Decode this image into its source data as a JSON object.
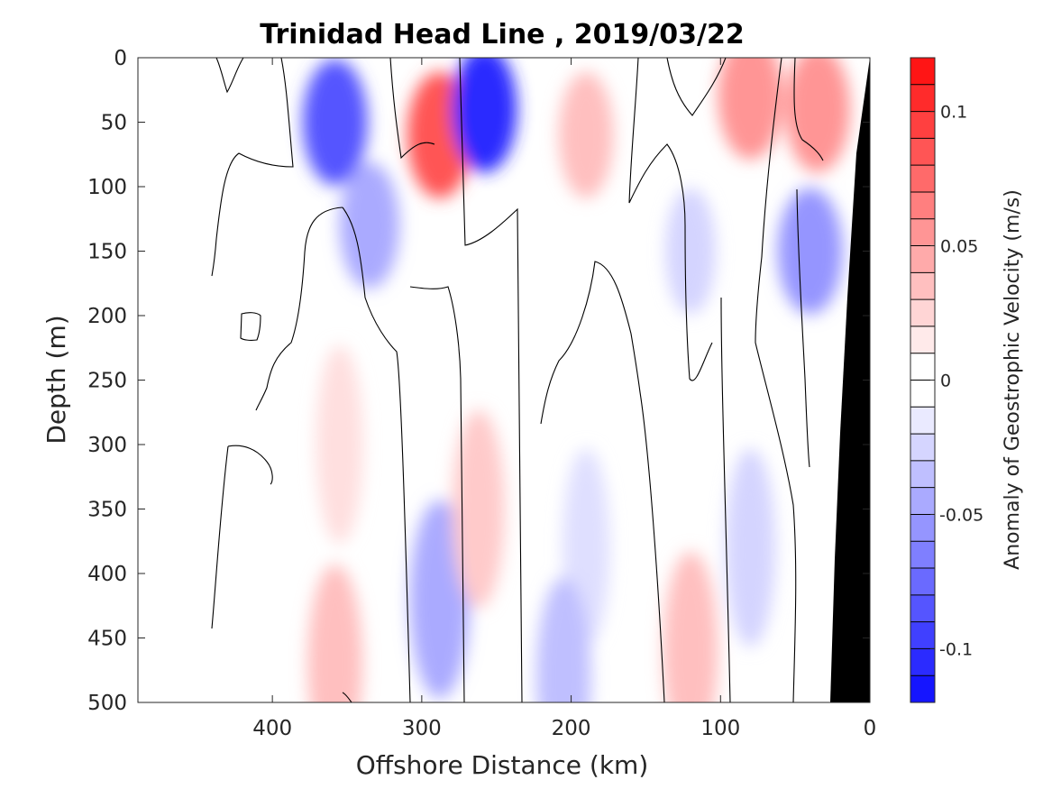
{
  "chart_data": {
    "type": "heatmap",
    "title": "Trinidad Head Line , 2019/03/22",
    "xlabel": "Offshore Distance (km)",
    "ylabel": "Depth (m)",
    "xlim": [
      490,
      0
    ],
    "ylim": [
      0,
      500
    ],
    "x_ticks": [
      "400",
      "300",
      "200",
      "100",
      "0"
    ],
    "x_tick_values": [
      400,
      300,
      200,
      100,
      0
    ],
    "y_ticks": [
      "0",
      "50",
      "100",
      "150",
      "200",
      "250",
      "300",
      "350",
      "400",
      "450",
      "500"
    ],
    "y_tick_values": [
      0,
      50,
      100,
      150,
      200,
      250,
      300,
      350,
      400,
      450,
      500
    ],
    "colorbar": {
      "label": "Anomaly of Geostrophic Velocity (m/s)",
      "range": [
        -0.12,
        0.12
      ],
      "levels": 24,
      "ticks": [
        "0.1",
        "0.05",
        "0",
        "-0.05",
        "-0.1"
      ],
      "tick_values": [
        0.1,
        0.05,
        0,
        -0.05,
        -0.1
      ],
      "color_low": "#0000ff",
      "color_mid": "#ffffff",
      "color_high": "#ff0000"
    },
    "bathymetry_color": "#000000",
    "contour_level": 0,
    "velocity_anomalies_m_s": [
      {
        "x_km": 358,
        "depth_m": 50,
        "value": -0.08
      },
      {
        "x_km": 335,
        "depth_m": 130,
        "value": -0.04
      },
      {
        "x_km": 288,
        "depth_m": 60,
        "value": 0.08
      },
      {
        "x_km": 258,
        "depth_m": 40,
        "value": -0.1
      },
      {
        "x_km": 190,
        "depth_m": 60,
        "value": 0.03
      },
      {
        "x_km": 120,
        "depth_m": 150,
        "value": -0.02
      },
      {
        "x_km": 80,
        "depth_m": 30,
        "value": 0.05
      },
      {
        "x_km": 35,
        "depth_m": 40,
        "value": 0.05
      },
      {
        "x_km": 40,
        "depth_m": 150,
        "value": -0.05
      },
      {
        "x_km": 355,
        "depth_m": 300,
        "value": 0.015
      },
      {
        "x_km": 358,
        "depth_m": 470,
        "value": 0.03
      },
      {
        "x_km": 288,
        "depth_m": 420,
        "value": -0.04
      },
      {
        "x_km": 262,
        "depth_m": 350,
        "value": 0.025
      },
      {
        "x_km": 190,
        "depth_m": 380,
        "value": -0.015
      },
      {
        "x_km": 205,
        "depth_m": 480,
        "value": -0.03
      },
      {
        "x_km": 120,
        "depth_m": 460,
        "value": 0.03
      },
      {
        "x_km": 80,
        "depth_m": 380,
        "value": -0.02
      }
    ]
  }
}
